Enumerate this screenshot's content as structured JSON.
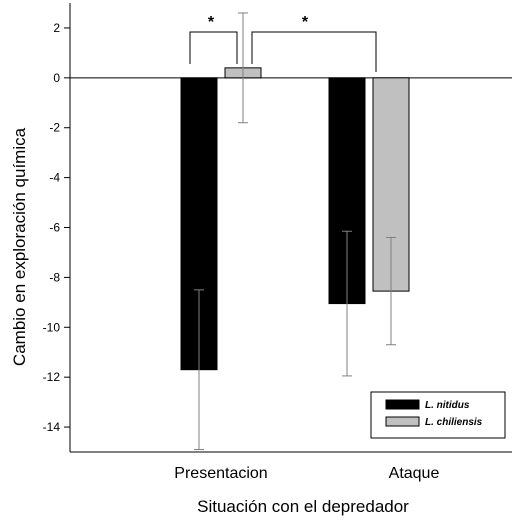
{
  "chart_data": {
    "type": "bar",
    "categories": [
      "Presentacion",
      "Ataque"
    ],
    "series": [
      {
        "name": "L. nitidus",
        "color": "#000000",
        "values": [
          -11.7,
          -9.05
        ],
        "error": [
          3.2,
          2.9
        ]
      },
      {
        "name": "L. chiliensis",
        "color": "#c0c0c0",
        "values": [
          0.4,
          -8.55
        ],
        "error": [
          2.2,
          2.15
        ]
      }
    ],
    "xlabel": "Situación con el depredador",
    "ylabel": "Cambio en exploración química",
    "ylim": [
      -15,
      3
    ],
    "yticks": [
      2,
      0,
      -2,
      -4,
      -6,
      -8,
      -10,
      -12,
      -14
    ],
    "ytick_labels": [
      "2",
      "0",
      "-2",
      "-4",
      "-6",
      "-8",
      "-10",
      "-12",
      "-14"
    ],
    "significance_mark": "*",
    "legend_position": "bottom-right",
    "grid": false
  }
}
